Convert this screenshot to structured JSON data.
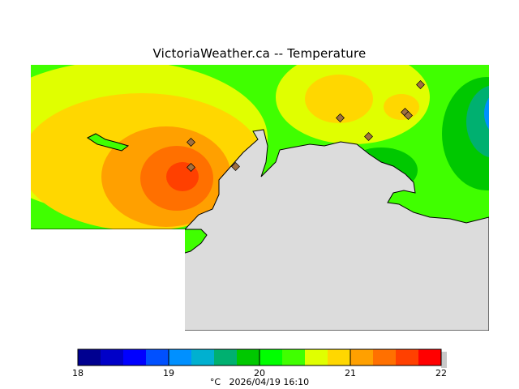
{
  "title": "VictoriaWeather.ca -- Temperature",
  "caption": {
    "unit": "°C",
    "timestamp": "2026/04/19 16:10"
  },
  "colorbar": {
    "min": 18,
    "max": 22,
    "tick_labels": [
      "18",
      "19",
      "20",
      "21",
      "22"
    ],
    "colors": [
      "#000090",
      "#0000c8",
      "#0000ff",
      "#0050ff",
      "#0090ff",
      "#00b0d0",
      "#00b070",
      "#00c800",
      "#00ff00",
      "#40ff00",
      "#e0ff00",
      "#ffd700",
      "#ffa000",
      "#ff7000",
      "#ff4000",
      "#ff0000"
    ]
  },
  "colors": {
    "land": "#dcdcdc",
    "coast": "#000000",
    "station_marker": "#a07040"
  },
  "stations_count_visible": 8
}
